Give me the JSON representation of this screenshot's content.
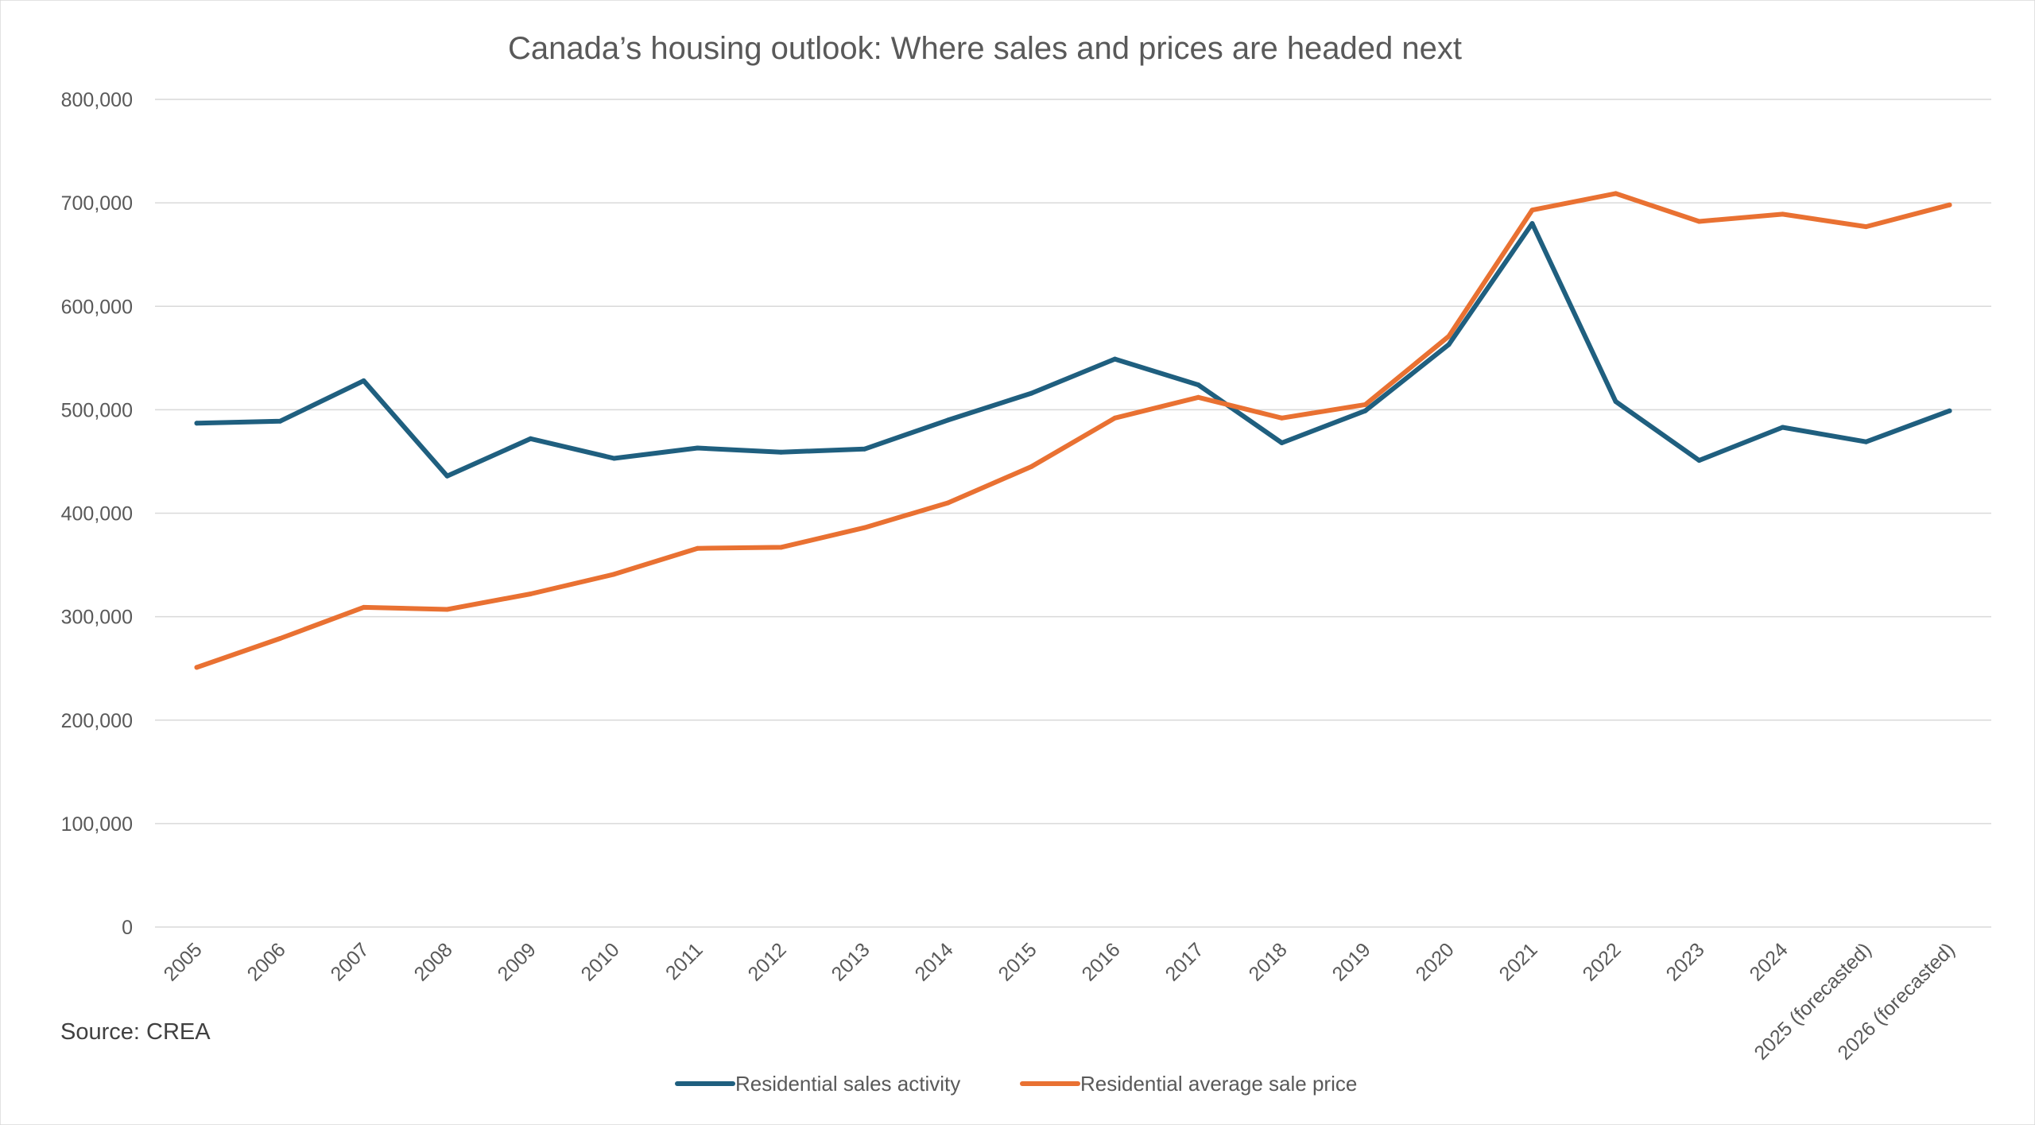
{
  "chart_data": {
    "type": "line",
    "title": "Canada’s housing outlook: Where sales and prices are headed next",
    "source": "Source: CREA",
    "xlabel": "",
    "ylabel": "",
    "ylim": [
      0,
      800000
    ],
    "yticks": [
      0,
      100000,
      200000,
      300000,
      400000,
      500000,
      600000,
      700000,
      800000
    ],
    "ytick_labels": [
      "0",
      "100,000",
      "200,000",
      "300,000",
      "400,000",
      "500,000",
      "600,000",
      "700,000",
      "800,000"
    ],
    "grid": true,
    "legend_position": "bottom",
    "categories": [
      "2005",
      "2006",
      "2007",
      "2008",
      "2009",
      "2010",
      "2011",
      "2012",
      "2013",
      "2014",
      "2015",
      "2016",
      "2017",
      "2018",
      "2019",
      "2020",
      "2021",
      "2022",
      "2023",
      "2024",
      "2025 (forecasted)",
      "2026 (forecasted)"
    ],
    "series": [
      {
        "name": "Residential sales activity",
        "color": "#1f5f7f",
        "values": [
          487000,
          489000,
          528000,
          436000,
          472000,
          453000,
          463000,
          459000,
          462000,
          490000,
          516000,
          549000,
          524000,
          468000,
          499000,
          563000,
          680000,
          508000,
          451000,
          483000,
          469000,
          499000
        ]
      },
      {
        "name": "Residential average sale price",
        "color": "#e97132",
        "values": [
          251000,
          279000,
          309000,
          307000,
          322000,
          341000,
          366000,
          367000,
          386000,
          410000,
          445000,
          492000,
          512000,
          492000,
          505000,
          571000,
          693000,
          709000,
          682000,
          689000,
          677000,
          698000
        ]
      }
    ]
  }
}
